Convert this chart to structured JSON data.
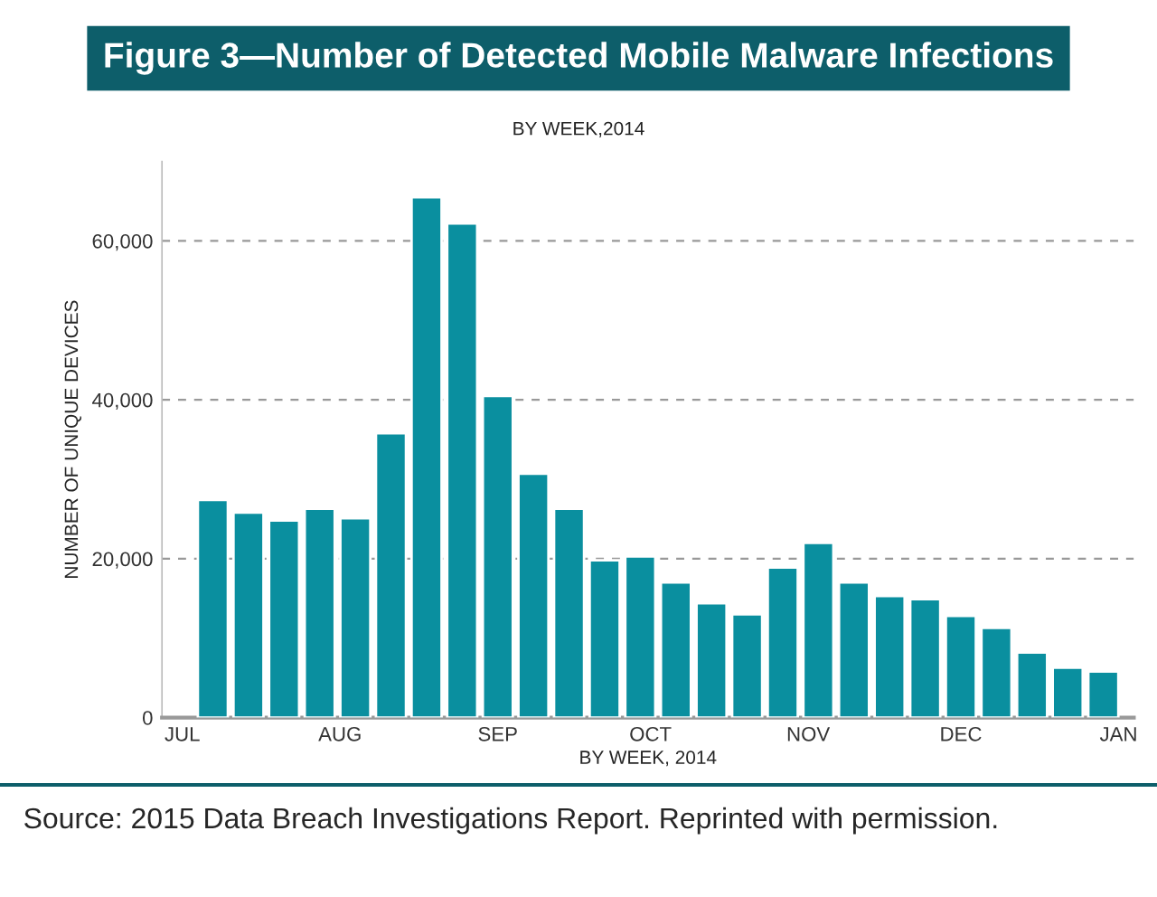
{
  "chart_data": {
    "type": "bar",
    "title": "Figure 3—Number of Detected Mobile Malware Infections",
    "subtitle": "BY WEEK,2014",
    "xlabel": "BY WEEK, 2014",
    "ylabel": "NUMBER OF UNIQUE DEVICES",
    "x": [
      "2014-07-07",
      "2014-07-14",
      "2014-07-21",
      "2014-07-28",
      "2014-08-04",
      "2014-08-11",
      "2014-08-18",
      "2014-08-25",
      "2014-09-01",
      "2014-09-08",
      "2014-09-15",
      "2014-09-22",
      "2014-09-29",
      "2014-10-06",
      "2014-10-13",
      "2014-10-20",
      "2014-10-27",
      "2014-11-03",
      "2014-11-10",
      "2014-11-17",
      "2014-11-24",
      "2014-12-01",
      "2014-12-08",
      "2014-12-15",
      "2014-12-22",
      "2014-12-29"
    ],
    "series": [
      {
        "color": "#0a8f9f",
        "values": [
          27400,
          25800,
          24800,
          26300,
          25100,
          35800,
          65500,
          62200,
          40500,
          30700,
          26300,
          19800,
          20300,
          17000,
          14400,
          13000,
          18900,
          22000,
          17000,
          15300,
          14900,
          12800,
          11300,
          8200,
          6300,
          5800
        ]
      }
    ],
    "xlim": [
      "2014-06-27",
      "2015-01-04"
    ],
    "xticks": [
      {
        "value": "2014-07-01",
        "label": "JUL"
      },
      {
        "value": "2014-08-01",
        "label": "AUG"
      },
      {
        "value": "2014-09-01",
        "label": "SEP"
      },
      {
        "value": "2014-10-01",
        "label": "OCT"
      },
      {
        "value": "2014-11-01",
        "label": "NOV"
      },
      {
        "value": "2014-12-01",
        "label": "DEC"
      },
      {
        "value": "2015-01-01",
        "label": "JAN"
      }
    ],
    "ylim": [
      0,
      70000
    ],
    "yticks": [
      {
        "value": 0,
        "label": "0"
      },
      {
        "value": 20000,
        "label": "20,000"
      },
      {
        "value": 40000,
        "label": "40,000"
      },
      {
        "value": 60000,
        "label": "60,000"
      }
    ],
    "grid": "y",
    "annotations": [
      "Source: 2015 Data Breach Investigations Report. Reprinted with permission."
    ]
  }
}
